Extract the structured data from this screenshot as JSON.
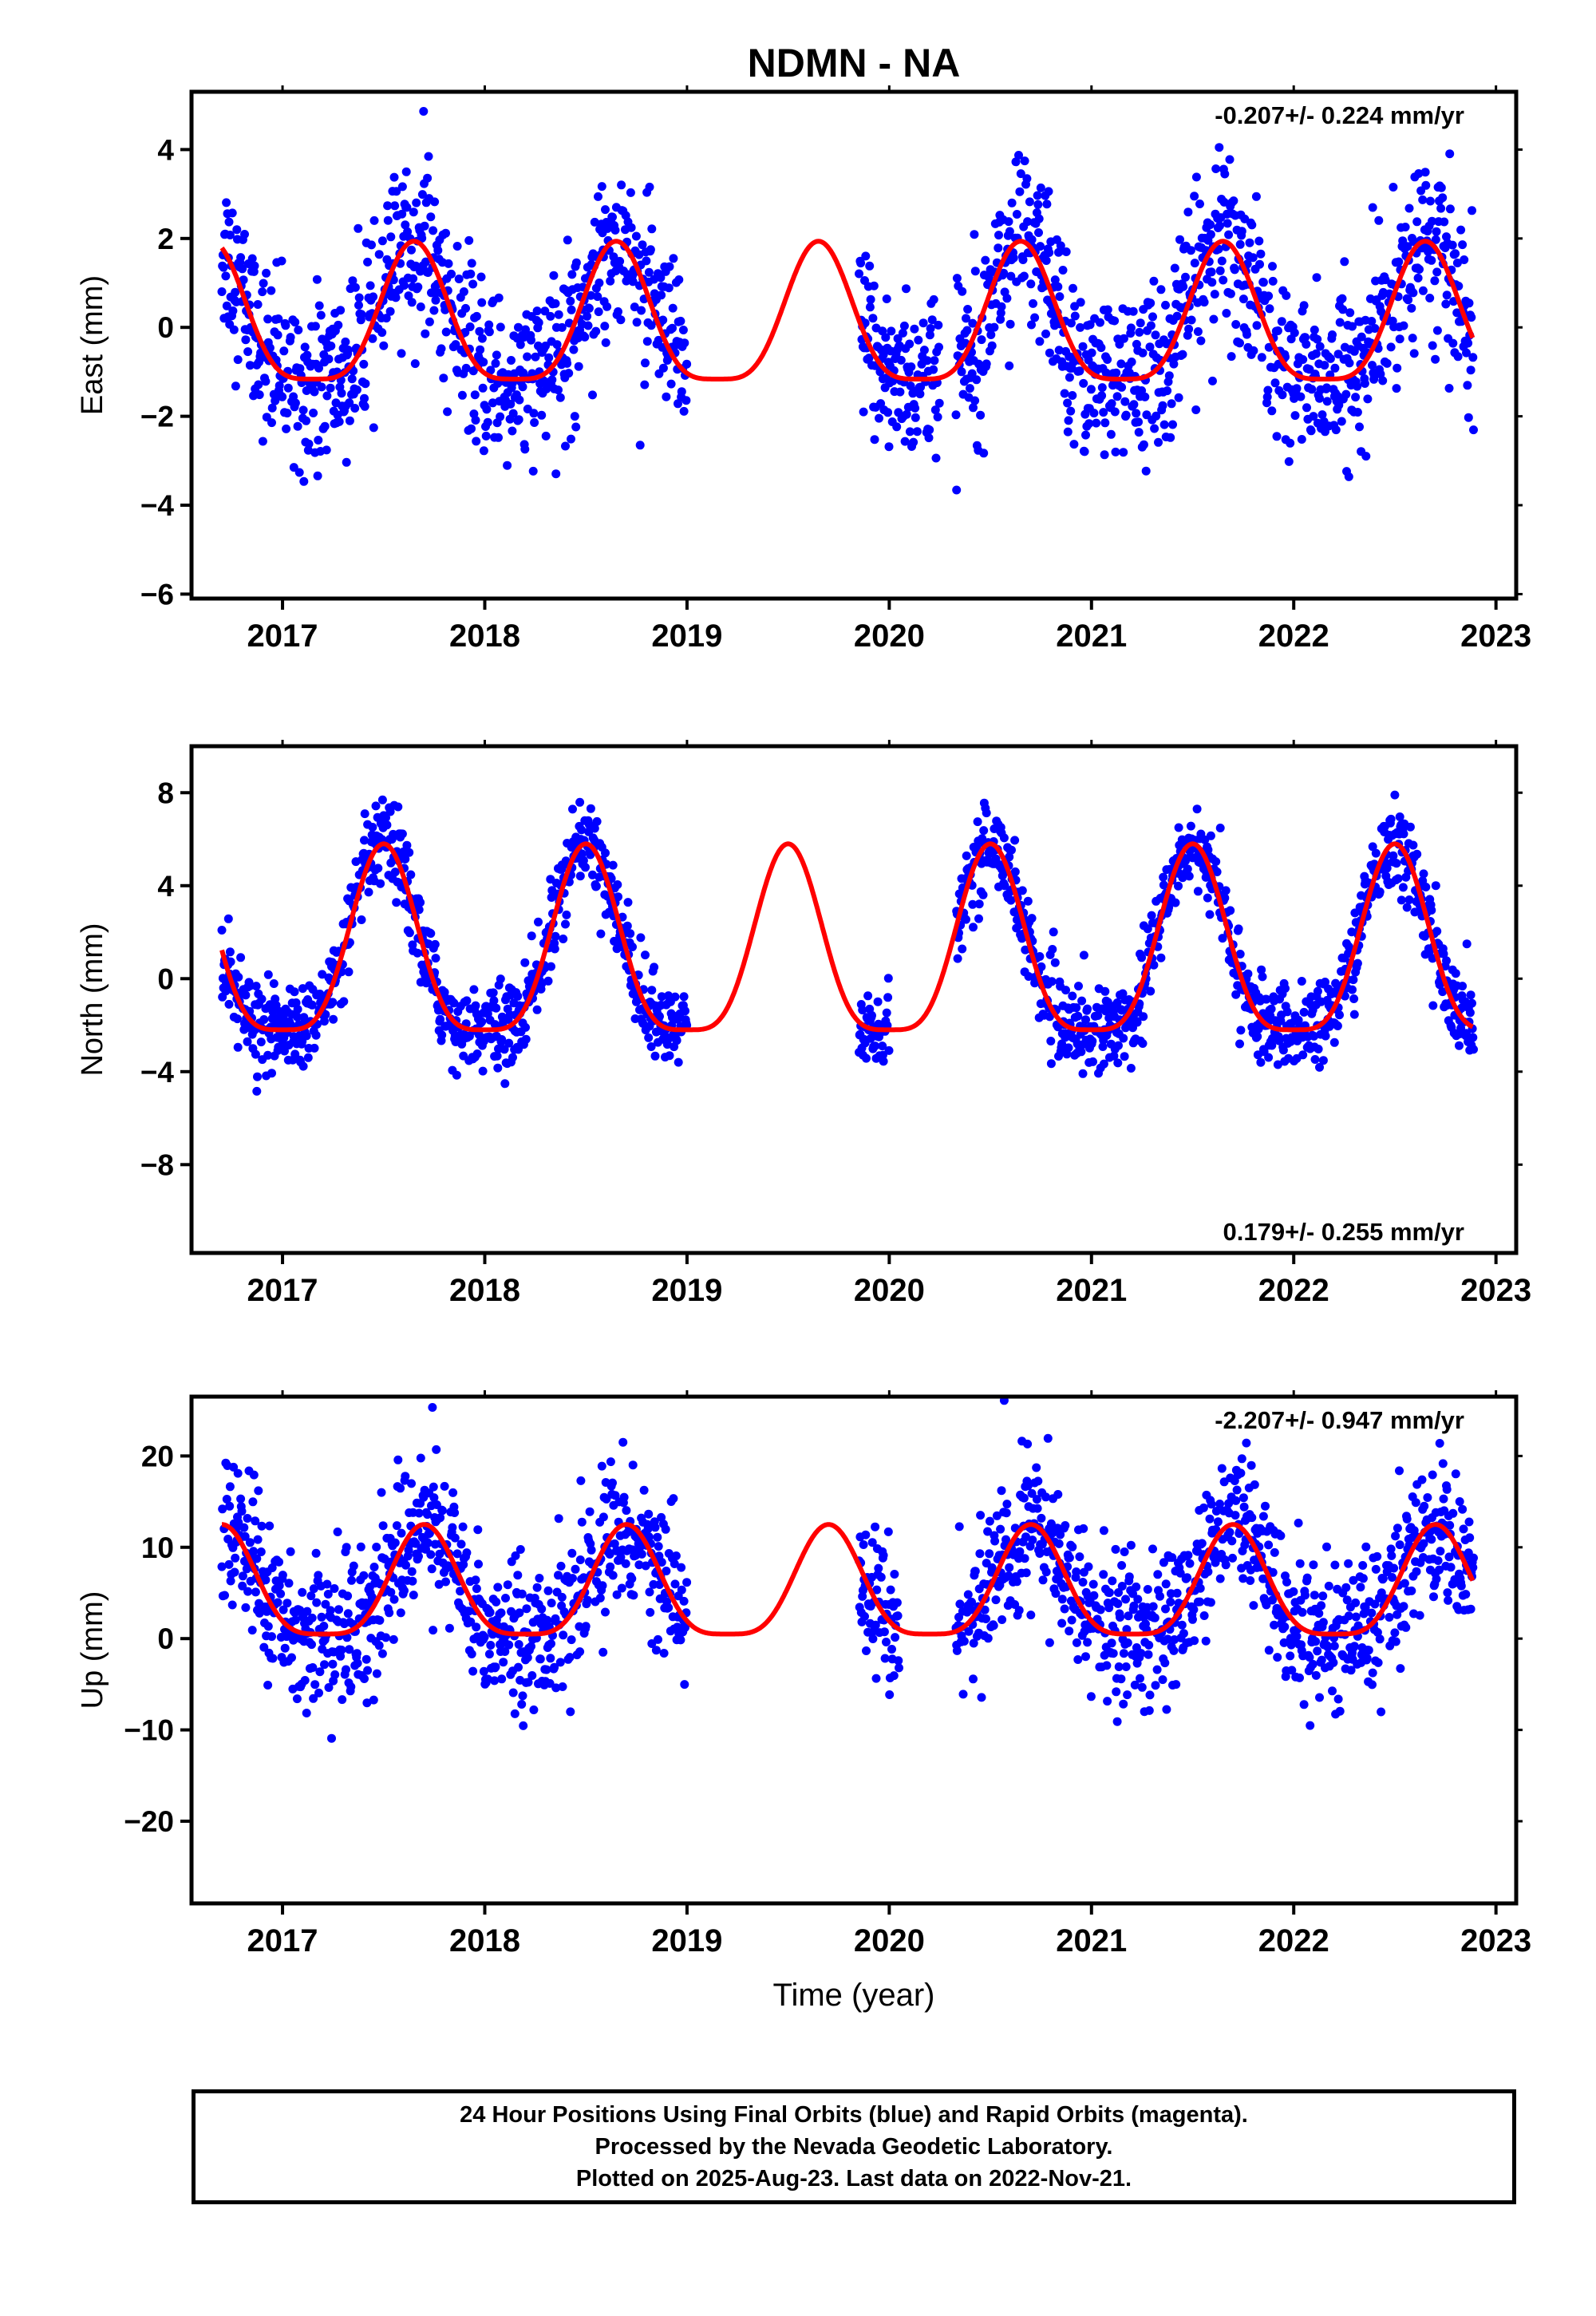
{
  "title": "NDMN - NA",
  "colors": {
    "final_points": "#0000ff",
    "rapid_points": "#ff00ff",
    "model_curve": "#ff0000",
    "axes": "#000000"
  },
  "chart_data": [
    {
      "type": "scatter",
      "panel": "east",
      "ylabel": "East (mm)",
      "xlabel": "",
      "xlim": [
        2016.55,
        2023.1
      ],
      "ylim": [
        -6.1,
        5.3
      ],
      "yticks": [
        -6,
        -4,
        -2,
        0,
        2,
        4
      ],
      "xticks": [
        2017,
        2018,
        2019,
        2020,
        2021,
        2022,
        2023
      ],
      "annotation": "-0.207+/- 0.224 mm/yr",
      "annotation_position": "top-right",
      "trend": {
        "amp": 1.55,
        "peak": 0.65,
        "intercept": 0.0,
        "noise": 0.95
      },
      "gaps": [
        [
          2019.0,
          2019.85
        ],
        [
          2020.25,
          2020.33
        ]
      ],
      "data_span": [
        2016.7,
        2022.89
      ],
      "series": [
        {
          "name": "Final Orbits",
          "color": "#0000ff"
        },
        {
          "name": "Model fit",
          "color": "#ff0000"
        }
      ]
    },
    {
      "type": "scatter",
      "panel": "north",
      "ylabel": "North (mm)",
      "xlabel": "",
      "xlim": [
        2016.55,
        2023.1
      ],
      "ylim": [
        -11.8,
        10.0
      ],
      "yticks": [
        -8,
        -4,
        0,
        4,
        8
      ],
      "xticks": [
        2017,
        2018,
        2019,
        2020,
        2021,
        2022,
        2023
      ],
      "annotation": "0.179+/- 0.255 mm/yr",
      "annotation_position": "bottom-right",
      "trend": {
        "amp": 4.0,
        "peak": 0.5,
        "intercept": 0.8,
        "noise": 0.9
      },
      "gaps": [
        [
          2019.0,
          2019.85
        ],
        [
          2020.0,
          2020.33
        ]
      ],
      "data_span": [
        2016.7,
        2022.89
      ],
      "series": [
        {
          "name": "Final Orbits",
          "color": "#0000ff"
        },
        {
          "name": "Model fit",
          "color": "#ff0000"
        }
      ]
    },
    {
      "type": "scatter",
      "panel": "up",
      "ylabel": "Up (mm)",
      "xlabel": "Time (year)",
      "xlim": [
        2016.55,
        2023.1
      ],
      "ylim": [
        -29,
        26.5
      ],
      "yticks": [
        -20,
        -10,
        0,
        10,
        20
      ],
      "xticks": [
        2017,
        2018,
        2019,
        2020,
        2021,
        2022,
        2023
      ],
      "annotation": "-2.207+/- 0.947 mm/yr",
      "annotation_position": "top-right",
      "trend": {
        "amp": 6.0,
        "peak": 0.7,
        "intercept": 5.0,
        "noise": 4.0
      },
      "gaps": [
        [
          2019.0,
          2019.85
        ],
        [
          2020.05,
          2020.33
        ]
      ],
      "data_span": [
        2016.7,
        2022.89
      ],
      "series": [
        {
          "name": "Final Orbits",
          "color": "#0000ff"
        },
        {
          "name": "Model fit",
          "color": "#ff0000"
        }
      ]
    }
  ],
  "footer": {
    "line1": "24 Hour Positions Using Final Orbits (blue) and Rapid Orbits (magenta).",
    "line2": "Processed by the Nevada Geodetic Laboratory.",
    "line3": "Plotted on 2025-Aug-23. Last data on 2022-Nov-21."
  }
}
